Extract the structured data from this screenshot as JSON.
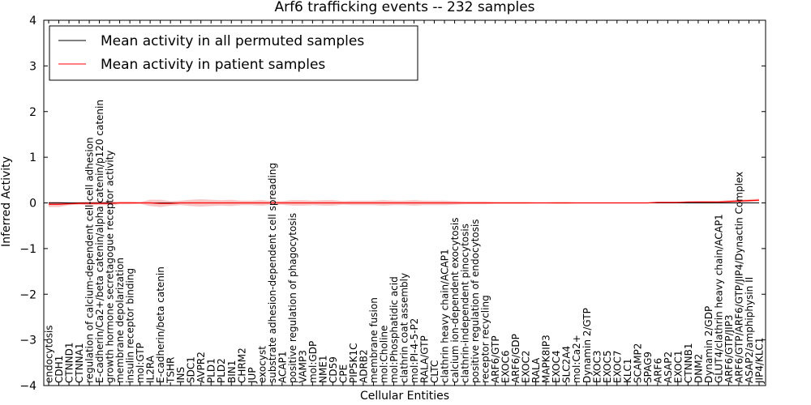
{
  "chart_data": {
    "type": "line",
    "title": "Arf6 trafficking events -- 232 samples",
    "xlabel": "Cellular Entities",
    "ylabel": "Inferred Activity",
    "ylim": [
      -4,
      4
    ],
    "yticks": [
      "−4",
      "−3",
      "−2",
      "−1",
      "0",
      "1",
      "2",
      "3",
      "4"
    ],
    "legend": {
      "placement": "top-left",
      "entries": [
        {
          "label": "Mean activity in all permuted samples",
          "color": "#000000"
        },
        {
          "label": "Mean activity in patient samples",
          "color": "#ff0000"
        }
      ]
    },
    "categories": [
      "endocytosis",
      "CDH1",
      "CTNND1",
      "CTNNA1",
      "regulation of calcium-dependent cell-cell adhesion",
      "E-cadherin/Ca2+/beta catenin/alpha catenin/p120 catenin",
      "growth hormone secretagogue receptor activity",
      "membrane depolarization",
      "insulin receptor binding",
      "mol:GTP",
      "IL2RA",
      "E-cadherin/beta catenin",
      "TSHR",
      "INS",
      "SDC1",
      "AVPR2",
      "PLD1",
      "PLD2",
      "BIN1",
      "CHRM2",
      "JUP",
      "exocyst",
      "substrate adhesion-dependent cell spreading",
      "ACAP1",
      "positive regulation of phagocytosis",
      "VAMP3",
      "mol:GDP",
      "NME1",
      "CD59",
      "CPE",
      "PIP5K1C",
      "ADRB2",
      "membrane fusion",
      "mol:Choline",
      "mol:Phosphatidic acid",
      "clathrin coat assembly",
      "mol:PI-4-5-P2",
      "RALA/GTP",
      "CLTC",
      "clathrin heavy chain/ACAP1",
      "calcium ion-dependent exocytosis",
      "clathrin-independent pinocytosis",
      "positive regulation of endocytosis",
      "receptor recycling",
      "ARF6/GTP",
      "EXOC6",
      "ARF6/GDP",
      "EXOC2",
      "RALA",
      "MAPK8IP3",
      "EXOC4",
      "SLC2A4",
      "mol:Ca2+",
      "Dynamin 2/GTP",
      "EXOC3",
      "EXOC5",
      "EXOC7",
      "KLC1",
      "SCAMP2",
      "SPAG9",
      "ARF6",
      "ASAP2",
      "EXOC1",
      "CTNNB1",
      "DNM2",
      "Dynamin 2/GDP",
      "GLUT4/clathrin heavy chain/ACAP1",
      "ARF6/GTP/JIP3",
      "ARF6/GTP/ARF6/GTP/JIP4/Dynactin Complex",
      "ASAP2/amphiphysin II",
      "JIP4/KLC1"
    ],
    "series": [
      {
        "name": "Mean activity in all permuted samples",
        "color": "#000000",
        "values": [
          0,
          0,
          0,
          0,
          0,
          0,
          0,
          0,
          0,
          0,
          0,
          0,
          0,
          0,
          0,
          0,
          0,
          0,
          0,
          0,
          0,
          0,
          0,
          0,
          0,
          0,
          0,
          0,
          0,
          0,
          0,
          0,
          0,
          0,
          0,
          0,
          0,
          0,
          0,
          0,
          0,
          0,
          0,
          0,
          0,
          0,
          0,
          0,
          0,
          0,
          0,
          0,
          0,
          0,
          0,
          0,
          0,
          0,
          0,
          0,
          0,
          0,
          0,
          0,
          0,
          0,
          0,
          0,
          0,
          0,
          0
        ]
      },
      {
        "name": "Mean activity in patient samples",
        "color": "#ff0000",
        "values": [
          -0.03,
          -0.03,
          -0.02,
          -0.01,
          -0.01,
          -0.01,
          -0.01,
          0,
          0,
          0,
          0,
          -0.01,
          -0.01,
          0,
          0,
          0,
          0,
          0,
          0,
          0,
          0,
          0,
          0,
          0,
          0,
          0,
          0,
          0,
          0,
          0,
          0,
          0,
          0,
          0,
          0,
          0,
          0,
          0,
          0,
          0,
          0,
          0,
          0,
          0,
          0,
          0,
          0,
          0,
          0,
          0,
          0,
          0,
          0,
          0,
          0,
          0,
          0,
          0,
          0,
          0,
          0.01,
          0.01,
          0.01,
          0.02,
          0.02,
          0.02,
          0.02,
          0.03,
          0.04,
          0.05,
          0.06
        ],
        "spread": [
          0.06,
          0.06,
          0.03,
          0.03,
          0.04,
          0.04,
          0.04,
          0.03,
          0.03,
          0.02,
          0.07,
          0.08,
          0.05,
          0.05,
          0.07,
          0.08,
          0.07,
          0.06,
          0.07,
          0.05,
          0.05,
          0.06,
          0.04,
          0.04,
          0.06,
          0.06,
          0.05,
          0.06,
          0.06,
          0.04,
          0.05,
          0.05,
          0.05,
          0.06,
          0.05,
          0.05,
          0.06,
          0.05,
          0.05,
          0.05,
          0.04,
          0.03,
          0.03,
          0.03,
          0.02,
          0.02,
          0.02,
          0.02,
          0.01,
          0.01,
          0.02,
          0.02,
          0.01,
          0.01,
          0.01,
          0.01,
          0.01,
          0.01,
          0.01,
          0.01,
          0.01,
          0.01,
          0.01,
          0.01,
          0.02,
          0.02,
          0.02,
          0.03,
          0.03,
          0.03,
          0.03
        ]
      }
    ]
  }
}
